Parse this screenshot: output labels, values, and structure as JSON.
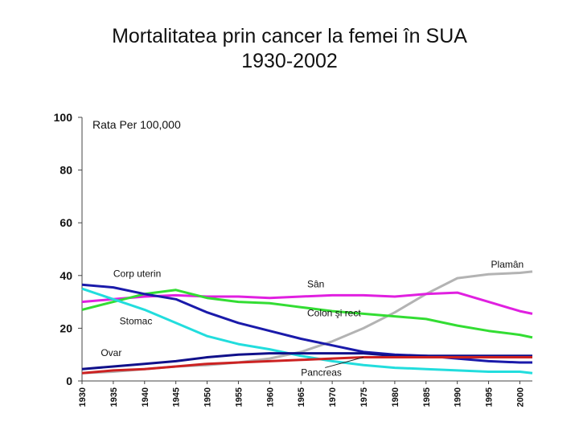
{
  "title_lines": [
    "Mortalitatea prin cancer la femei în SUA",
    "1930-2002"
  ],
  "chart_data": {
    "type": "line",
    "title": "Mortalitatea prin cancer la femei în SUA 1930-2002",
    "ylabel": "Rata Per 100,000",
    "xlabel": "",
    "ylim": [
      0,
      100
    ],
    "xlim": [
      1930,
      2002
    ],
    "yticks": [
      0,
      20,
      40,
      60,
      80,
      100
    ],
    "xticks": [
      "1930",
      "1935",
      "1940",
      "1945",
      "1950",
      "1955",
      "1960",
      "1965",
      "1970",
      "1975",
      "1980",
      "1985",
      "1990",
      "1995",
      "2000"
    ],
    "x": [
      1930,
      1935,
      1940,
      1945,
      1950,
      1955,
      1960,
      1965,
      1970,
      1975,
      1980,
      1985,
      1990,
      1995,
      2000,
      2002
    ],
    "series": [
      {
        "name": "Plamân",
        "color": "#b3b3b3",
        "label_year": 1998,
        "label_value": 43,
        "values": [
          3,
          3.5,
          4.5,
          5.5,
          6,
          7,
          8.5,
          11,
          15,
          20,
          26,
          33,
          39,
          40.5,
          41,
          41.5
        ]
      },
      {
        "name": "Sân",
        "color": "#e020e0",
        "label_year": 1966,
        "label_value": 35.5,
        "values": [
          30,
          31,
          32,
          32.5,
          32,
          32,
          31.5,
          32,
          32.5,
          32.5,
          32,
          33,
          33.5,
          30,
          26.5,
          25.5
        ]
      },
      {
        "name": "Colon şi rect",
        "color": "#33dd33",
        "label_year": 1966,
        "label_value": 24.5,
        "values": [
          27,
          30,
          33,
          34.5,
          31.5,
          30,
          29.5,
          28,
          26.5,
          25.5,
          24.5,
          23.5,
          21,
          19,
          17.5,
          16.5
        ]
      },
      {
        "name": "Corp uterin",
        "color": "#1a1aaa",
        "label_year": 1935,
        "label_value": 39.5,
        "values": [
          36.5,
          35.5,
          33,
          31,
          26,
          22,
          19,
          16,
          13.5,
          11,
          10,
          9.5,
          8.5,
          7.5,
          7,
          7
        ]
      },
      {
        "name": "Stomac",
        "color": "#22dddd",
        "label_year": 1936,
        "label_value": 21.5,
        "values": [
          35,
          31,
          27,
          22,
          17,
          14,
          12,
          9.5,
          7.5,
          6,
          5,
          4.5,
          4,
          3.5,
          3.5,
          3
        ]
      },
      {
        "name": "Ovar",
        "color": "#10108a",
        "label_year": 1933,
        "label_value": 9.5,
        "values": [
          4.5,
          5.5,
          6.5,
          7.5,
          9,
          10,
          10.5,
          10.5,
          10.5,
          10.5,
          9.5,
          9.5,
          9.5,
          9.5,
          9.5,
          9.5
        ]
      },
      {
        "name": "Pancreas",
        "color": "#cc2222",
        "label_year": 1965,
        "label_value": 2,
        "values": [
          3,
          4,
          4.5,
          5.5,
          6.5,
          7,
          7.5,
          8,
          8.5,
          9,
          9,
          9,
          9,
          9,
          9,
          9
        ]
      }
    ],
    "annotations": [
      {
        "text": "Pancreas",
        "points_to_year": 1975,
        "points_to_value": 9
      }
    ]
  }
}
